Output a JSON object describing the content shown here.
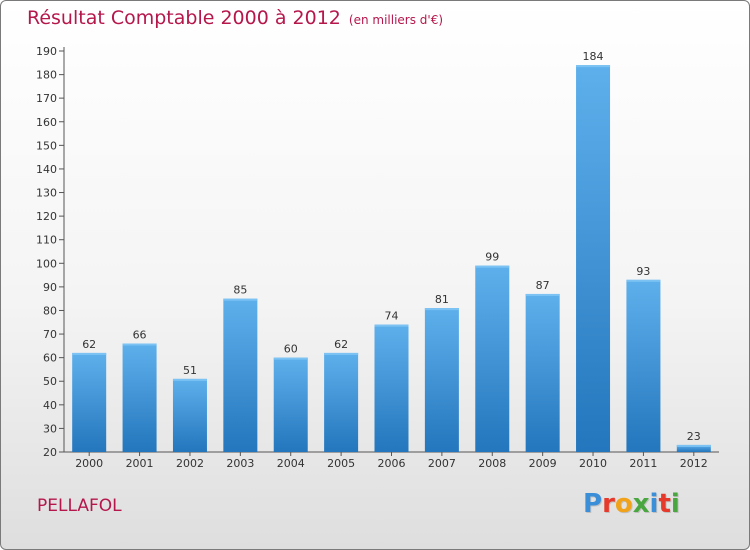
{
  "header": {
    "title": "Résultat Comptable 2000 à 2012",
    "subtitle": "(en milliers d'€)"
  },
  "footer": {
    "commune": "PELLAFOL",
    "logo_text": "Proxiti",
    "logo_colors": [
      "#3b8fd8",
      "#e6392b",
      "#f0a21a",
      "#4aa63f",
      "#3b8fd8",
      "#e6392b",
      "#4aa63f"
    ]
  },
  "chart_data": {
    "type": "bar",
    "categories": [
      "2000",
      "2001",
      "2002",
      "2003",
      "2004",
      "2005",
      "2006",
      "2007",
      "2008",
      "2009",
      "2010",
      "2011",
      "2012"
    ],
    "values": [
      62,
      66,
      51,
      85,
      60,
      62,
      74,
      81,
      99,
      87,
      184,
      93,
      23
    ],
    "data_labels": [
      "62",
      "66",
      "51",
      "85",
      "60",
      "62",
      "74",
      "81",
      "99",
      "87",
      "184",
      "93",
      "23"
    ],
    "ylim": [
      20,
      190
    ],
    "yticks": [
      20,
      30,
      40,
      50,
      60,
      70,
      80,
      90,
      100,
      110,
      120,
      130,
      140,
      150,
      160,
      170,
      180,
      190
    ],
    "grid": false,
    "bar_color": "#3d95dc"
  }
}
